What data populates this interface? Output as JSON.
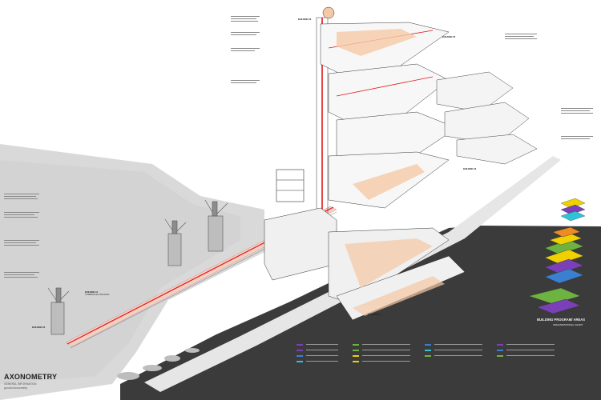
{
  "title_block": {
    "title": "AXONOMETRY",
    "subtitle_1": "GENERAL INFORMATION",
    "subtitle_2": "ground axonometry"
  },
  "program_block": {
    "title": "BUILDING PROGRAM/ AREAS",
    "subtitle": "ORGANIZATIONAL CHART"
  },
  "building_labels": {
    "b1": "BUILDING 01",
    "b1_sub": "COMMERCIAL BUILDING",
    "b2": "BUILDING 02",
    "b3": "BUILDING 03",
    "b4": "BUILDING 04",
    "b5": "BUILDING 05",
    "b6": "BUILDING 06"
  },
  "legend": {
    "colors": {
      "purple": "#7b3fb8",
      "green": "#6db33f",
      "yellow": "#f0d000",
      "blue": "#3a7fd0",
      "orange": "#f08a24",
      "cyan": "#2ec4d6",
      "red": "#e01818",
      "peach": "#f5c9a6"
    },
    "columns": [
      "AREA LIST",
      "AREA PROGRAM",
      "AREA LIST",
      "AREA PROGRAM",
      "AREA LIST",
      "AREA PROGRAM",
      "AREA LIST",
      "AREA PROGRAM"
    ]
  },
  "colors": {
    "dark": "#3b3b3b",
    "ground": "#d6d6d6",
    "accent": "#e01818",
    "peach": "#f5c9a6",
    "line": "#333333"
  }
}
